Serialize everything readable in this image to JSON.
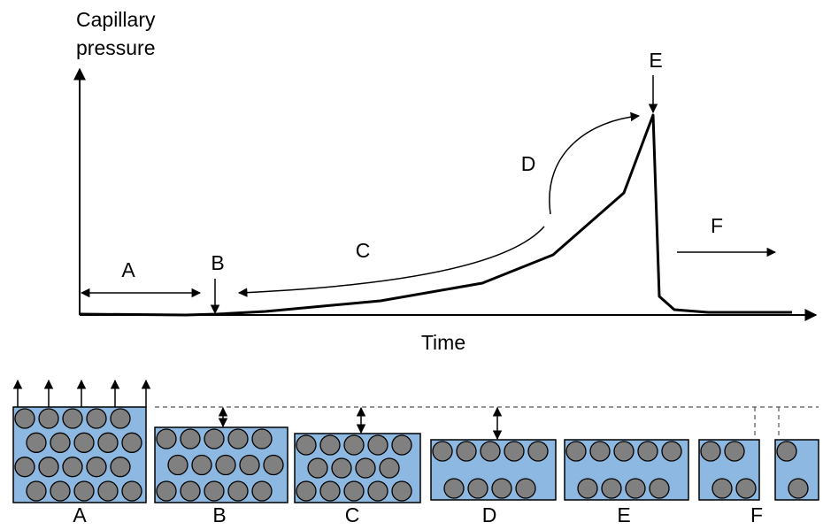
{
  "graph": {
    "y_axis_label": [
      "Capillary",
      "pressure"
    ],
    "x_axis_label": "Time",
    "stages": [
      "A",
      "B",
      "C",
      "D",
      "E",
      "F"
    ]
  },
  "panels": [
    "A",
    "B",
    "C",
    "D",
    "E",
    "F"
  ]
}
